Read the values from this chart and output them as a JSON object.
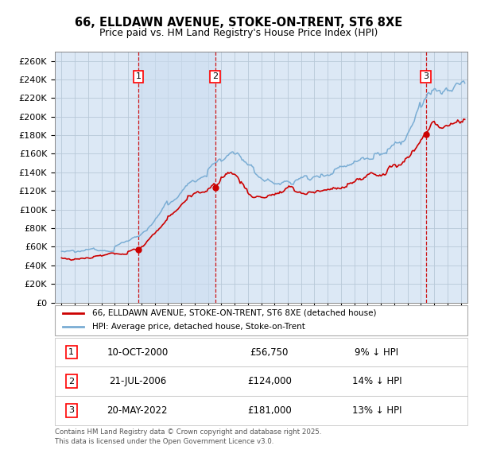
{
  "title": "66, ELLDAWN AVENUE, STOKE-ON-TRENT, ST6 8XE",
  "subtitle": "Price paid vs. HM Land Registry's House Price Index (HPI)",
  "background_color": "#ffffff",
  "grid_color": "#cccccc",
  "plot_bg_color": "#dce8f5",
  "red_color": "#cc0000",
  "blue_color": "#7aadd4",
  "shade_color": "#dce8f5",
  "ylim": [
    0,
    270000
  ],
  "yticks": [
    0,
    20000,
    40000,
    60000,
    80000,
    100000,
    120000,
    140000,
    160000,
    180000,
    200000,
    220000,
    240000,
    260000
  ],
  "sale_dates": [
    2000.78,
    2006.55,
    2022.38
  ],
  "sale_prices": [
    56750,
    124000,
    181000
  ],
  "sale_labels": [
    "1",
    "2",
    "3"
  ],
  "vline_color": "#cc0000",
  "legend_entries": [
    "66, ELLDAWN AVENUE, STOKE-ON-TRENT, ST6 8XE (detached house)",
    "HPI: Average price, detached house, Stoke-on-Trent"
  ],
  "table_rows": [
    [
      "1",
      "10-OCT-2000",
      "£56,750",
      "9% ↓ HPI"
    ],
    [
      "2",
      "21-JUL-2006",
      "£124,000",
      "14% ↓ HPI"
    ],
    [
      "3",
      "20-MAY-2022",
      "£181,000",
      "13% ↓ HPI"
    ]
  ],
  "footnote": "Contains HM Land Registry data © Crown copyright and database right 2025.\nThis data is licensed under the Open Government Licence v3.0.",
  "xmin": 1994.5,
  "xmax": 2025.5
}
